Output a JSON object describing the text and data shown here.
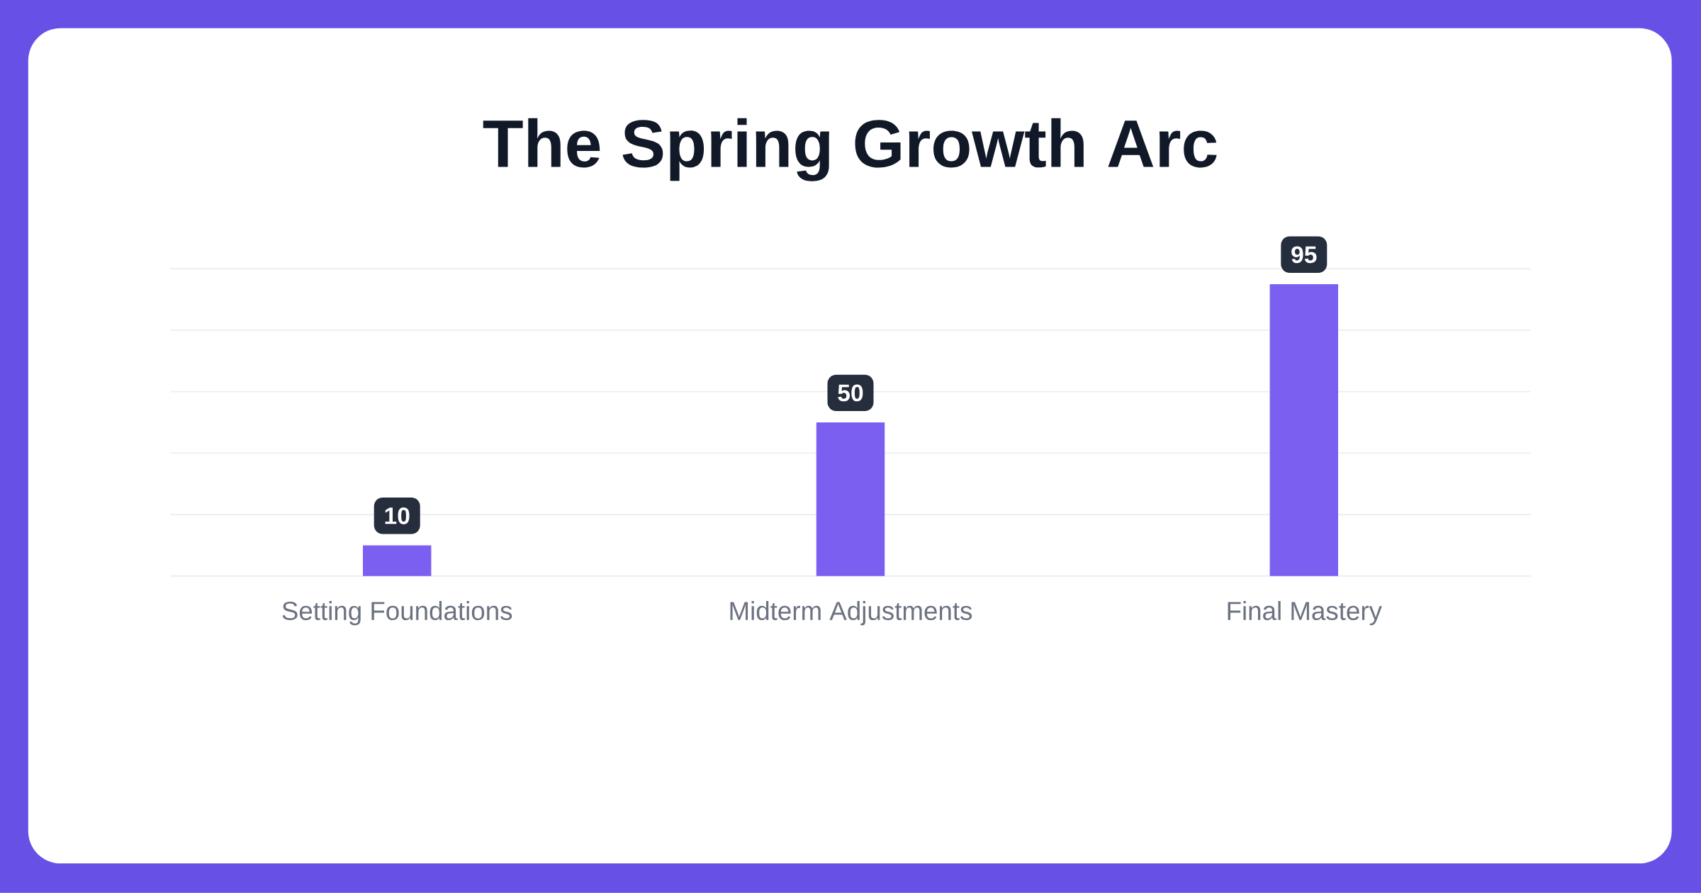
{
  "chart_data": {
    "type": "bar",
    "title": "The Spring Growth Arc",
    "categories": [
      "Setting Foundations",
      "Midterm Adjustments",
      "Final Mastery"
    ],
    "values": [
      10,
      50,
      95
    ],
    "color": "#7b5ff0",
    "tick_labels": "x",
    "grid": "y",
    "data_labels": true
  }
}
